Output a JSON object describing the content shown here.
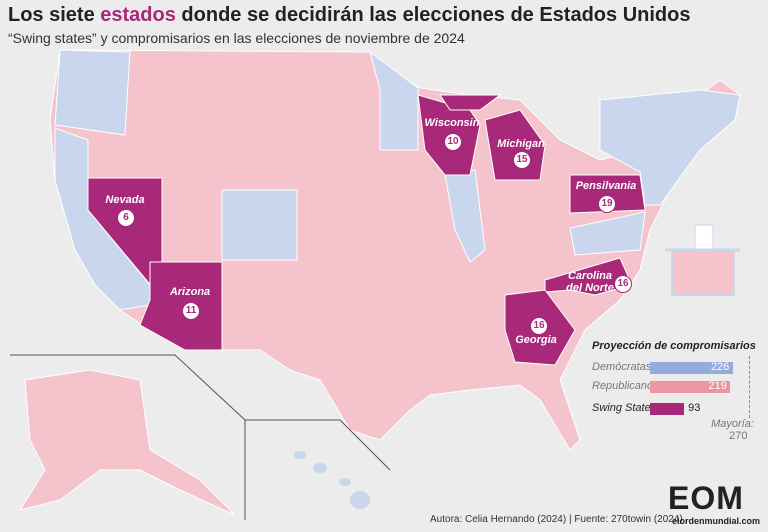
{
  "header": {
    "title_parts": [
      "Los siete ",
      "estados",
      " donde se decidirán las elecciones de Estados Unidos"
    ],
    "subtitle": "“Swing states” y compromisarios en las elecciones de noviembre de 2024"
  },
  "swing_states": [
    {
      "name": "Nevada",
      "votes": 6
    },
    {
      "name": "Arizona",
      "votes": 11
    },
    {
      "name": "Wisconsin",
      "votes": 10
    },
    {
      "name": "Michigan",
      "votes": 15
    },
    {
      "name": "Pensilvania",
      "votes": 19
    },
    {
      "name": "Carolina del Norte",
      "votes": 16
    },
    {
      "name": "Georgia",
      "votes": 16
    }
  ],
  "legend": {
    "title": "Proyección de compromisarios",
    "bars": [
      {
        "name": "Demócratas",
        "value": 226,
        "color": "#95abdc"
      },
      {
        "name": "Republicanos",
        "value": 219,
        "color": "#ea96a3"
      },
      {
        "name": "Swing States",
        "value": 93,
        "color": "#a8287a"
      }
    ],
    "majority": {
      "label": "Mayoría:",
      "value": 270
    }
  },
  "footer": {
    "source": "Autora: Celia Hernando (2024) | Fuente: 270towin (2024)",
    "logo": "EOM",
    "site": "elordenmundial.com"
  }
}
